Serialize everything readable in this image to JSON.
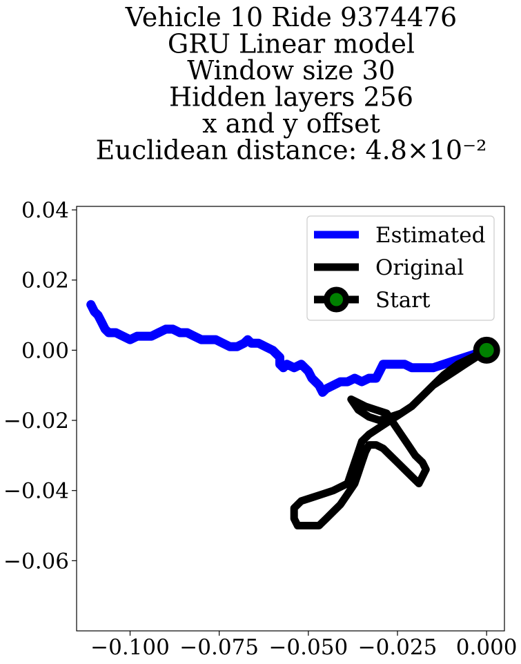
{
  "chart_data": {
    "type": "line",
    "title_lines": [
      "Vehicle 10 Ride 9374476",
      "GRU Linear model",
      "Window size 30",
      "Hidden layers 256",
      "x and y offset",
      "Euclidean distance: 4.8×10⁻²"
    ],
    "xlabel": "",
    "ylabel": "",
    "xlim": [
      -0.115,
      0.005
    ],
    "ylim": [
      -0.08,
      0.041
    ],
    "xticks": [
      -0.1,
      -0.075,
      -0.05,
      -0.025,
      0.0
    ],
    "xtick_labels": [
      "−0.100",
      "−0.075",
      "−0.050",
      "−0.025",
      "0.000"
    ],
    "yticks": [
      0.04,
      0.02,
      0.0,
      -0.02,
      -0.04,
      -0.06
    ],
    "ytick_labels": [
      "0.04",
      "0.02",
      "0.00",
      "−0.02",
      "−0.04",
      "−0.06"
    ],
    "grid": false,
    "legend_position": "top-right",
    "series": [
      {
        "name": "Estimated",
        "color": "#0000ff",
        "points": [
          [
            0,
            0
          ],
          [
            -0.003,
            -0.001
          ],
          [
            -0.006,
            -0.002
          ],
          [
            -0.009,
            -0.003
          ],
          [
            -0.012,
            -0.004
          ],
          [
            -0.015,
            -0.005
          ],
          [
            -0.018,
            -0.005
          ],
          [
            -0.021,
            -0.005
          ],
          [
            -0.023,
            -0.004
          ],
          [
            -0.025,
            -0.004
          ],
          [
            -0.027,
            -0.004
          ],
          [
            -0.029,
            -0.004
          ],
          [
            -0.03,
            -0.006
          ],
          [
            -0.031,
            -0.008
          ],
          [
            -0.033,
            -0.008
          ],
          [
            -0.035,
            -0.009
          ],
          [
            -0.037,
            -0.008
          ],
          [
            -0.039,
            -0.009
          ],
          [
            -0.041,
            -0.009
          ],
          [
            -0.043,
            -0.01
          ],
          [
            -0.045,
            -0.011
          ],
          [
            -0.046,
            -0.012
          ],
          [
            -0.047,
            -0.01
          ],
          [
            -0.048,
            -0.009
          ],
          [
            -0.049,
            -0.008
          ],
          [
            -0.05,
            -0.006
          ],
          [
            -0.051,
            -0.005
          ],
          [
            -0.052,
            -0.004
          ],
          [
            -0.054,
            -0.005
          ],
          [
            -0.056,
            -0.004
          ],
          [
            -0.057,
            -0.005
          ],
          [
            -0.058,
            -0.004
          ],
          [
            -0.058,
            -0.002
          ],
          [
            -0.059,
            -0.001
          ],
          [
            -0.06,
            0.0
          ],
          [
            -0.062,
            0.001
          ],
          [
            -0.064,
            0.002
          ],
          [
            -0.066,
            0.002
          ],
          [
            -0.067,
            0.003
          ],
          [
            -0.068,
            0.002
          ],
          [
            -0.07,
            0.001
          ],
          [
            -0.072,
            0.001
          ],
          [
            -0.074,
            0.002
          ],
          [
            -0.076,
            0.003
          ],
          [
            -0.078,
            0.003
          ],
          [
            -0.08,
            0.003
          ],
          [
            -0.082,
            0.004
          ],
          [
            -0.084,
            0.005
          ],
          [
            -0.086,
            0.005
          ],
          [
            -0.088,
            0.006
          ],
          [
            -0.09,
            0.006
          ],
          [
            -0.092,
            0.005
          ],
          [
            -0.094,
            0.004
          ],
          [
            -0.096,
            0.004
          ],
          [
            -0.098,
            0.004
          ],
          [
            -0.1,
            0.003
          ],
          [
            -0.102,
            0.004
          ],
          [
            -0.104,
            0.005
          ],
          [
            -0.106,
            0.005
          ],
          [
            -0.107,
            0.006
          ],
          [
            -0.108,
            0.008
          ],
          [
            -0.109,
            0.01
          ],
          [
            -0.11,
            0.011
          ],
          [
            -0.111,
            0.013
          ]
        ]
      },
      {
        "name": "Original",
        "color": "#000000",
        "points": [
          [
            0,
            0
          ],
          [
            -0.003,
            -0.002
          ],
          [
            -0.006,
            -0.004
          ],
          [
            -0.009,
            -0.006
          ],
          [
            -0.012,
            -0.008
          ],
          [
            -0.015,
            -0.01
          ],
          [
            -0.018,
            -0.013
          ],
          [
            -0.021,
            -0.016
          ],
          [
            -0.024,
            -0.018
          ],
          [
            -0.027,
            -0.02
          ],
          [
            -0.03,
            -0.022
          ],
          [
            -0.033,
            -0.024
          ],
          [
            -0.035,
            -0.026
          ],
          [
            -0.036,
            -0.029
          ],
          [
            -0.037,
            -0.032
          ],
          [
            -0.038,
            -0.035
          ],
          [
            -0.039,
            -0.038
          ],
          [
            -0.041,
            -0.039
          ],
          [
            -0.043,
            -0.04
          ],
          [
            -0.046,
            -0.041
          ],
          [
            -0.049,
            -0.042
          ],
          [
            -0.052,
            -0.043
          ],
          [
            -0.054,
            -0.045
          ],
          [
            -0.054,
            -0.048
          ],
          [
            -0.053,
            -0.05
          ],
          [
            -0.051,
            -0.05
          ],
          [
            -0.049,
            -0.05
          ],
          [
            -0.047,
            -0.05
          ],
          [
            -0.045,
            -0.048
          ],
          [
            -0.043,
            -0.046
          ],
          [
            -0.041,
            -0.044
          ],
          [
            -0.039,
            -0.041
          ],
          [
            -0.037,
            -0.038
          ],
          [
            -0.036,
            -0.035
          ],
          [
            -0.035,
            -0.032
          ],
          [
            -0.034,
            -0.029
          ],
          [
            -0.033,
            -0.027
          ],
          [
            -0.031,
            -0.027
          ],
          [
            -0.029,
            -0.028
          ],
          [
            -0.027,
            -0.03
          ],
          [
            -0.025,
            -0.032
          ],
          [
            -0.023,
            -0.034
          ],
          [
            -0.021,
            -0.036
          ],
          [
            -0.019,
            -0.038
          ],
          [
            -0.018,
            -0.036
          ],
          [
            -0.017,
            -0.034
          ],
          [
            -0.018,
            -0.032
          ],
          [
            -0.02,
            -0.03
          ],
          [
            -0.022,
            -0.027
          ],
          [
            -0.024,
            -0.024
          ],
          [
            -0.026,
            -0.021
          ],
          [
            -0.028,
            -0.018
          ],
          [
            -0.031,
            -0.017
          ],
          [
            -0.034,
            -0.016
          ],
          [
            -0.036,
            -0.015
          ],
          [
            -0.038,
            -0.014
          ],
          [
            -0.036,
            -0.017
          ],
          [
            -0.033,
            -0.019
          ],
          [
            -0.03,
            -0.02
          ],
          [
            -0.027,
            -0.019
          ],
          [
            -0.024,
            -0.018
          ],
          [
            -0.021,
            -0.016
          ],
          [
            -0.018,
            -0.013
          ],
          [
            -0.015,
            -0.01
          ],
          [
            -0.012,
            -0.007
          ],
          [
            -0.008,
            -0.004
          ],
          [
            -0.004,
            -0.002
          ],
          [
            0,
            0
          ]
        ]
      }
    ],
    "legend": [
      {
        "label": "Estimated",
        "kind": "line",
        "color": "#0000ff"
      },
      {
        "label": "Original",
        "kind": "line",
        "color": "#000000"
      },
      {
        "label": "Start",
        "kind": "marker",
        "color": "#000000",
        "marker_face": "#008000"
      }
    ],
    "start_point": {
      "x": 0.0,
      "y": 0.0,
      "edge_color": "#000000",
      "face_color": "#008000"
    }
  }
}
